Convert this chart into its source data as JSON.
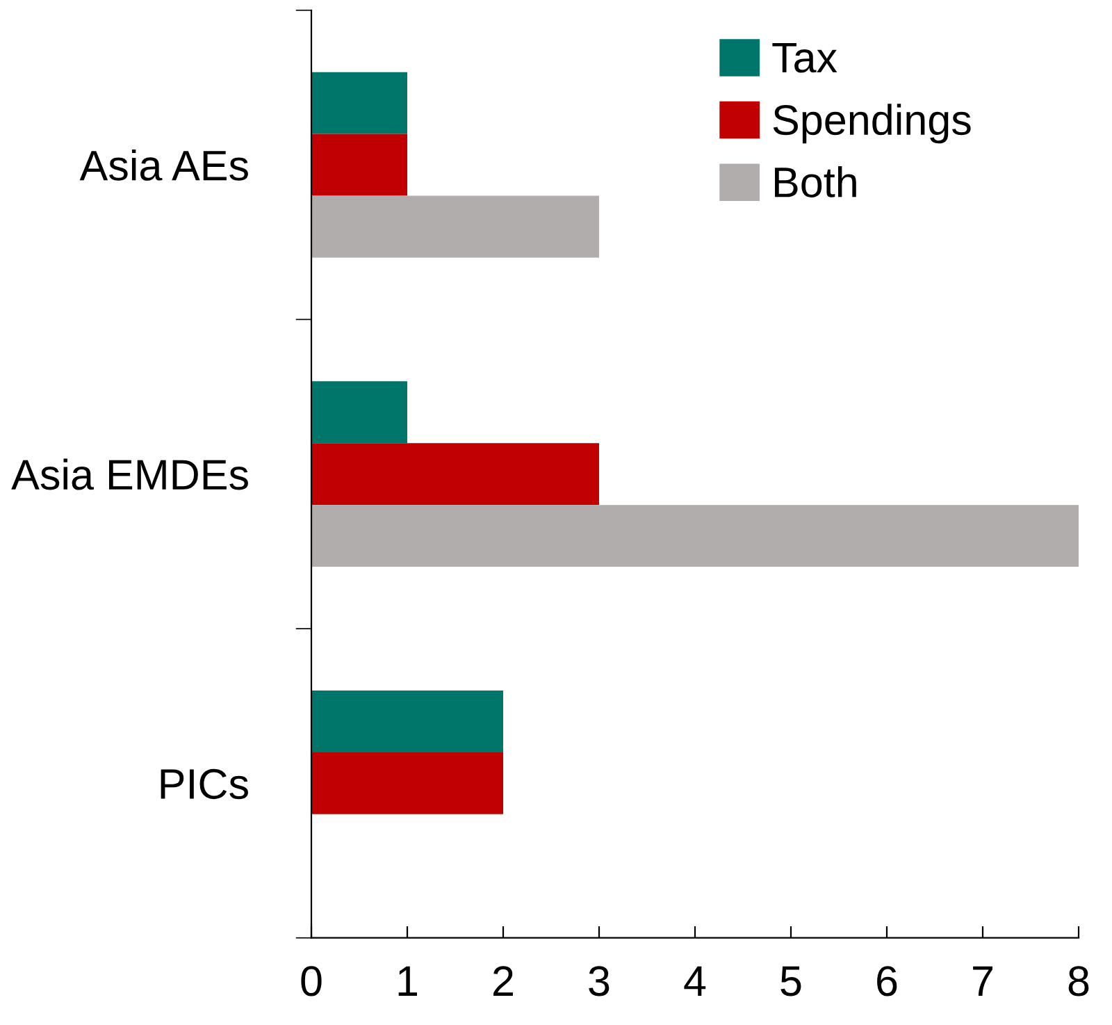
{
  "chart_data": {
    "type": "bar",
    "orientation": "horizontal",
    "categories": [
      "Asia AEs",
      "Asia EMDEs",
      "PICs"
    ],
    "series": [
      {
        "name": "Tax",
        "color": "#00756a",
        "values": [
          1,
          1,
          2
        ]
      },
      {
        "name": "Spendings",
        "color": "#c00000",
        "values": [
          1,
          3,
          2
        ]
      },
      {
        "name": "Both",
        "color": "#b0adac",
        "values": [
          3,
          8,
          null
        ]
      }
    ],
    "xlim": [
      0,
      8
    ],
    "xticks": [
      0,
      1,
      2,
      3,
      4,
      5,
      6,
      7,
      8
    ],
    "grid": false,
    "legend": "top right"
  }
}
